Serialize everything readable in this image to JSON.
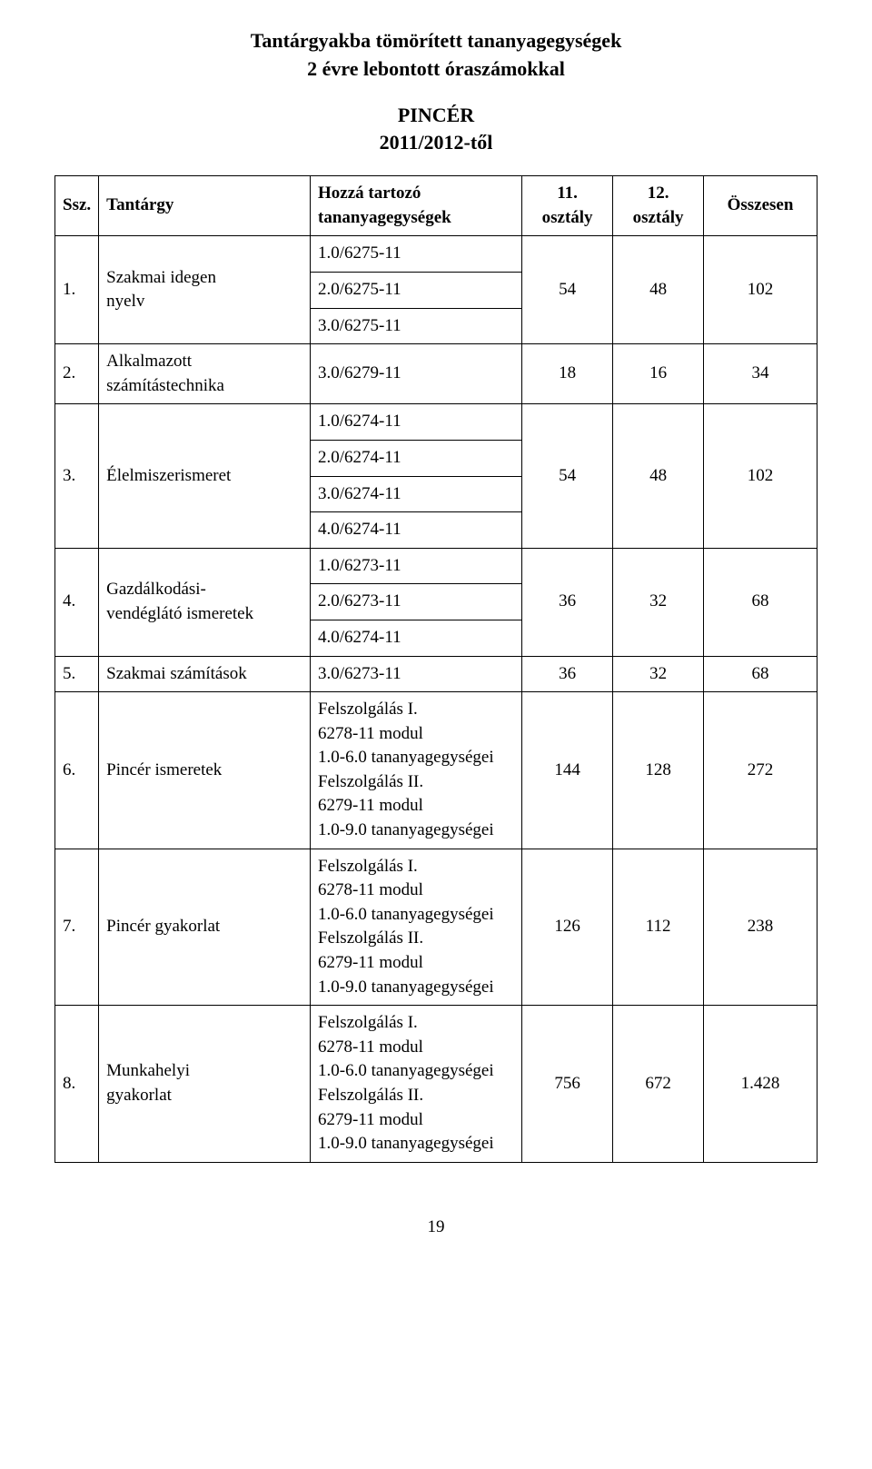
{
  "title": {
    "line1": "Tantárgyakba tömörített tananyagegységek",
    "line2": "2 évre lebontott óraszámokkal"
  },
  "subtitle": {
    "line1": "PINCÉR",
    "line2": "2011/2012-től"
  },
  "headers": {
    "num": "Ssz.",
    "subject": "Tantárgy",
    "units_l1": "Hozzá tartozó",
    "units_l2": "tananyagegységek",
    "c11_l1": "11.",
    "c11_l2": "osztály",
    "c12_l1": "12.",
    "c12_l2": "osztály",
    "total": "Összesen"
  },
  "rows": {
    "r1": {
      "num": "1.",
      "subject": "Szakmai idegen\nnyelv",
      "units": [
        "1.0/6275-11",
        "2.0/6275-11",
        "3.0/6275-11"
      ],
      "c11": "54",
      "c12": "48",
      "total": "102"
    },
    "r2": {
      "num": "2.",
      "subject": "Alkalmazott\nszámítástechnika",
      "unit": "3.0/6279-11",
      "c11": "18",
      "c12": "16",
      "total": "34"
    },
    "r3": {
      "num": "3.",
      "subject": "Élelmiszerismeret",
      "units": [
        "1.0/6274-11",
        "2.0/6274-11",
        "3.0/6274-11",
        "4.0/6274-11"
      ],
      "c11": "54",
      "c12": "48",
      "total": "102"
    },
    "r4": {
      "num": "4.",
      "subject": "Gazdálkodási-\nvendéglátó ismeretek",
      "units": [
        "1.0/6273-11",
        "2.0/6273-11",
        "4.0/6274-11"
      ],
      "c11": "36",
      "c12": "32",
      "total": "68"
    },
    "r5": {
      "num": "5.",
      "subject": "Szakmai számítások",
      "unit": "3.0/6273-11",
      "c11": "36",
      "c12": "32",
      "total": "68"
    },
    "r6": {
      "num": "6.",
      "subject": "Pincér ismeretek",
      "unit": "Felszolgálás I.\n6278-11 modul\n1.0-6.0 tananyagegységei\nFelszolgálás II.\n6279-11 modul\n1.0-9.0 tananyagegységei",
      "c11": "144",
      "c12": "128",
      "total": "272"
    },
    "r7": {
      "num": "7.",
      "subject": "Pincér gyakorlat",
      "unit": "Felszolgálás I.\n6278-11 modul\n1.0-6.0 tananyagegységei\nFelszolgálás II.\n6279-11 modul\n1.0-9.0 tananyagegységei",
      "c11": "126",
      "c12": "112",
      "total": "238"
    },
    "r8": {
      "num": "8.",
      "subject": "Munkahelyi\ngyakorlat",
      "unit": "Felszolgálás I.\n6278-11 modul\n1.0-6.0 tananyagegységei\nFelszolgálás II.\n6279-11 modul\n1.0-9.0 tananyagegységei",
      "c11": "756",
      "c12": "672",
      "total": "1.428"
    }
  },
  "page_number": "19"
}
